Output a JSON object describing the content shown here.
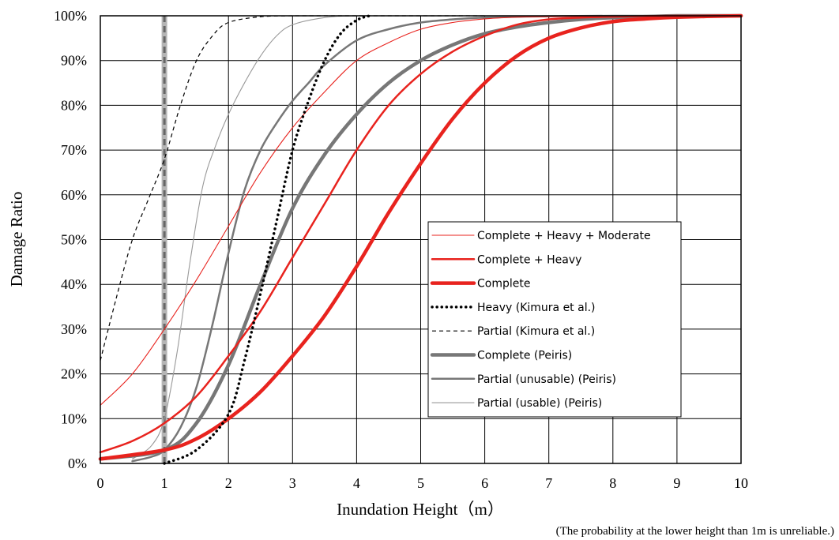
{
  "chart_data": {
    "type": "line",
    "xlabel": "Inundation Height（m）",
    "ylabel": "Damage Ratio",
    "note": "(The probability at the lower height than 1m is unreliable.)",
    "xlim": [
      0,
      10
    ],
    "ylim": [
      0,
      100
    ],
    "x_ticks": [
      "0",
      "1",
      "2",
      "3",
      "4",
      "5",
      "6",
      "7",
      "8",
      "9",
      "10"
    ],
    "y_ticks": [
      "0%",
      "10%",
      "20%",
      "30%",
      "40%",
      "50%",
      "60%",
      "70%",
      "80%",
      "90%",
      "100%"
    ],
    "grid": true,
    "legend_position": "lower-right",
    "reference_line_x": 1,
    "series": [
      {
        "name": "Complete + Heavy + Moderate",
        "color": "#e8231e",
        "style": "thin",
        "x": [
          0,
          0.5,
          1,
          1.5,
          2,
          2.5,
          3,
          3.5,
          4,
          4.5,
          5,
          5.5,
          6,
          6.5,
          7,
          8,
          9,
          10
        ],
        "y": [
          13,
          20,
          30,
          41,
          53,
          65,
          75,
          83,
          90,
          94,
          97,
          98.5,
          99.3,
          99.7,
          99.8,
          100,
          100,
          100
        ]
      },
      {
        "name": "Complete + Heavy",
        "color": "#e8231e",
        "style": "medium",
        "x": [
          0,
          0.5,
          1,
          1.5,
          2,
          2.5,
          3,
          3.5,
          4,
          4.5,
          5,
          5.5,
          6,
          6.5,
          7,
          7.5,
          8,
          9,
          10
        ],
        "y": [
          2.5,
          5,
          9,
          15,
          24,
          34,
          46,
          58,
          70,
          80,
          87,
          92,
          95.5,
          98,
          99.2,
          99.6,
          99.8,
          100,
          100
        ]
      },
      {
        "name": "Complete",
        "color": "#e8231e",
        "style": "thick",
        "x": [
          0,
          1,
          1.5,
          2,
          2.5,
          3,
          3.5,
          4,
          4.5,
          5,
          5.5,
          6,
          6.5,
          7,
          7.5,
          8,
          8.5,
          9,
          10
        ],
        "y": [
          1,
          3,
          5.5,
          10,
          16,
          24,
          33,
          44,
          56,
          67,
          77,
          85,
          91,
          95,
          97.3,
          98.7,
          99.3,
          99.7,
          100
        ]
      },
      {
        "name": "Heavy (Kimura et al.)",
        "color": "#000000",
        "style": "dotted",
        "x": [
          1,
          1.5,
          2,
          2.25,
          2.5,
          2.75,
          3,
          3.25,
          3.5,
          3.75,
          4,
          4.2
        ],
        "y": [
          0,
          3,
          11,
          23,
          38,
          54,
          70,
          81,
          90,
          96,
          99,
          100
        ]
      },
      {
        "name": "Partial (Kimura et al.)",
        "color": "#000000",
        "style": "dashed",
        "x": [
          0,
          0.25,
          0.5,
          0.75,
          1,
          1.25,
          1.5,
          1.75,
          2,
          2.5,
          3,
          3.5,
          4,
          4.5,
          5,
          5.5,
          6
        ],
        "y": [
          23,
          37,
          50,
          59,
          68,
          80,
          90,
          95.5,
          98.5,
          99.8,
          100,
          100,
          100,
          100,
          100,
          100,
          100
        ]
      },
      {
        "name": "Complete (Peiris)",
        "color": "#777777",
        "style": "thick",
        "x": [
          0,
          1,
          1.5,
          2,
          2.5,
          3,
          3.5,
          4,
          4.5,
          5,
          5.5,
          6,
          6.5,
          7,
          7.5,
          8,
          8.5,
          9,
          10
        ],
        "y": [
          1,
          3,
          9,
          22,
          40,
          57,
          69,
          78,
          85,
          90,
          93.5,
          96,
          97.5,
          98.5,
          99.2,
          99.6,
          99.8,
          100,
          100
        ]
      },
      {
        "name": "Partial (unusable) (Peiris)",
        "color": "#777777",
        "style": "medium",
        "x": [
          0.5,
          0.8,
          1,
          1.25,
          1.5,
          1.75,
          2,
          2.25,
          2.5,
          2.75,
          3,
          3.25,
          3.5,
          4,
          4.5,
          5,
          5.5,
          6,
          7,
          8,
          9,
          10
        ],
        "y": [
          0.5,
          1.5,
          3,
          8,
          17,
          31,
          47,
          61,
          70,
          76,
          81,
          85,
          89,
          94.5,
          97,
          98.5,
          99.2,
          99.6,
          99.9,
          100,
          100,
          100
        ]
      },
      {
        "name": "Partial (usable) (Peiris)",
        "color": "#999999",
        "style": "thin",
        "x": [
          0.5,
          0.8,
          1,
          1.2,
          1.4,
          1.6,
          1.8,
          2,
          2.25,
          2.5,
          2.75,
          3,
          3.5,
          4,
          5,
          6
        ],
        "y": [
          1,
          4,
          10,
          25,
          45,
          62,
          71,
          78,
          85,
          91,
          95.5,
          98,
          99.6,
          100,
          100,
          100
        ]
      }
    ]
  }
}
